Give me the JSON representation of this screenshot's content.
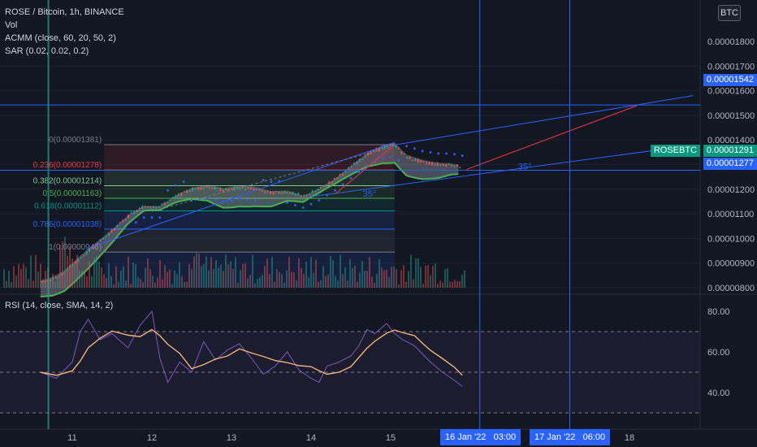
{
  "legend": {
    "symbol": "ROSE / Bitcoin, 1h, BINANCE",
    "vol": "Vol",
    "acmm": "ACMM (close, 60, 20, 50, 2)",
    "sar": "SAR (0.02, 0.02, 0.2)",
    "rsi": "RSI (14, close, SMA, 14, 2)"
  },
  "currency_button": "BTC",
  "price_axis_labels": [
    "0.00001800",
    "0.00001700",
    "0.00001600",
    "0.00001500",
    "0.00001400",
    "0.00001300",
    "0.00001200",
    "0.00001100",
    "0.00001000",
    "0.00000900",
    "0.00000800"
  ],
  "rsi_axis_labels": [
    "80.00",
    "60.00",
    "40.00"
  ],
  "time_axis_labels": [
    "11",
    "12",
    "13",
    "14",
    "15",
    "18"
  ],
  "tags": {
    "top_line_price": "0.00001542",
    "symbol_tag": "ROSEBTC",
    "last_price": "0.00001291",
    "crosshair_price": "0.00001277",
    "time_tag_1": "16 Jan '22",
    "time_tag_1_time": "03:00",
    "time_tag_2": "17 Jan '22",
    "time_tag_2_time": "06:00"
  },
  "fib_levels": [
    {
      "label": "0(0.00001381)"
    },
    {
      "label": "0.236(0.00001278)"
    },
    {
      "label": "0.382(0.00001214)"
    },
    {
      "label": "0.5(0.00001163)"
    },
    {
      "label": "0.618(0.00001112)"
    },
    {
      "label": "0.786(0.00001038)"
    },
    {
      "label": "1(0.00000945)"
    }
  ],
  "fib_colors": [
    "#787b86",
    "#f23645",
    "#81c995",
    "#4caf50",
    "#009688",
    "#2962ff",
    "#787b86"
  ],
  "angle_labels": [
    "35°",
    "35°"
  ],
  "colors": {
    "up": "#26a69a",
    "down": "#ef5350",
    "acmm": "#4caf50",
    "sar": "#2962ff",
    "rsi": "#7e57c2",
    "rsi_ma": "#f0b27a",
    "blue_line": "#2962ff"
  },
  "chart_data": {
    "type": "candlestick",
    "symbol": "ROSEBTC",
    "interval": "1h",
    "ylim": [
      8e-06,
      1.8e-05
    ],
    "fib_retracement": [
      1.381e-05,
      1.278e-05,
      1.214e-05,
      1.163e-05,
      1.112e-05,
      1.038e-05,
      9.45e-06
    ],
    "horizontal_lines": [
      1.542e-05,
      1.277e-05
    ],
    "last_price": 1.291e-05,
    "rsi_ylim": [
      25,
      85
    ],
    "rsi_bands": [
      70,
      50,
      30
    ],
    "price_path_anchors": [
      [
        10.6,
        8.2e-06
      ],
      [
        10.75,
        8.35e-06
      ],
      [
        10.9,
        8.6e-06
      ],
      [
        11.1,
        9.2e-06
      ],
      [
        11.3,
        9.75e-06
      ],
      [
        11.5,
        1.03e-05
      ],
      [
        11.7,
        1.09e-05
      ],
      [
        11.9,
        1.13e-05
      ],
      [
        12.1,
        1.13e-05
      ],
      [
        12.3,
        1.17e-05
      ],
      [
        12.5,
        1.2e-05
      ],
      [
        12.7,
        1.21e-05
      ],
      [
        12.9,
        1.195e-05
      ],
      [
        13.1,
        1.205e-05
      ],
      [
        13.3,
        1.2e-05
      ],
      [
        13.5,
        1.185e-05
      ],
      [
        13.7,
        1.19e-05
      ],
      [
        13.9,
        1.17e-05
      ],
      [
        14.1,
        1.2e-05
      ],
      [
        14.3,
        1.24e-05
      ],
      [
        14.5,
        1.29e-05
      ],
      [
        14.7,
        1.34e-05
      ],
      [
        14.9,
        1.37e-05
      ],
      [
        15.05,
        1.38e-05
      ],
      [
        15.2,
        1.33e-05
      ],
      [
        15.4,
        1.31e-05
      ],
      [
        15.6,
        1.3e-05
      ],
      [
        15.75,
        1.3e-05
      ],
      [
        15.9,
        1.291e-05
      ]
    ],
    "rsi_anchors": [
      [
        10.6,
        50
      ],
      [
        10.8,
        47
      ],
      [
        11.0,
        55
      ],
      [
        11.1,
        70
      ],
      [
        11.2,
        76
      ],
      [
        11.35,
        66
      ],
      [
        11.5,
        69
      ],
      [
        11.7,
        62
      ],
      [
        11.85,
        73
      ],
      [
        12.0,
        80
      ],
      [
        12.1,
        57
      ],
      [
        12.2,
        45
      ],
      [
        12.35,
        55
      ],
      [
        12.5,
        50
      ],
      [
        12.65,
        65
      ],
      [
        12.8,
        56
      ],
      [
        12.95,
        61
      ],
      [
        13.1,
        64
      ],
      [
        13.25,
        57
      ],
      [
        13.4,
        49
      ],
      [
        13.55,
        53
      ],
      [
        13.7,
        60
      ],
      [
        13.85,
        51
      ],
      [
        14.0,
        47
      ],
      [
        14.1,
        45
      ],
      [
        14.2,
        53
      ],
      [
        14.35,
        55
      ],
      [
        14.5,
        58
      ],
      [
        14.6,
        63
      ],
      [
        14.7,
        71
      ],
      [
        14.8,
        69
      ],
      [
        14.95,
        74
      ],
      [
        15.05,
        69
      ],
      [
        15.15,
        66
      ],
      [
        15.3,
        63
      ],
      [
        15.4,
        59
      ],
      [
        15.5,
        55
      ],
      [
        15.65,
        50
      ],
      [
        15.8,
        46
      ],
      [
        15.9,
        43
      ]
    ]
  }
}
